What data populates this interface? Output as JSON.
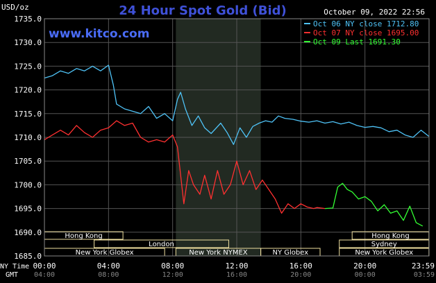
{
  "header": {
    "title": "24 Hour Spot Gold (Bid)",
    "y_unit": "USD/oz",
    "timestamp": "October 09, 2022 22:56",
    "watermark": "www.kitco.com"
  },
  "legend": [
    {
      "text": "Oct 06 NY close 1712.80",
      "color": "#4fc3f7"
    },
    {
      "text": "Oct 07 NY close 1695.00",
      "color": "#ff3030"
    },
    {
      "text": "Oct 09 Last 1691.30",
      "color": "#33ff33"
    }
  ],
  "time_labels": {
    "ny_caption": "NY Time",
    "gmt_caption": "GMT",
    "ny": [
      "00:00",
      "04:00",
      "08:00",
      "12:00",
      "16:00",
      "20:00",
      "23:59"
    ],
    "gmt": [
      "04:00",
      "08:00",
      "12:00",
      "16:00",
      "20:00",
      "00:00",
      "03:59"
    ]
  },
  "sessions": [
    {
      "label": "Hong Kong",
      "start": 0,
      "end": 4.9
    },
    {
      "label": "London",
      "start": 3.1,
      "end": 11.5
    },
    {
      "label": "New York Globex",
      "start": 0,
      "end": 7.5
    },
    {
      "label": "New York NYMEX",
      "start": 8.2,
      "end": 13.5
    },
    {
      "label": "NY Globex",
      "start": 13.5,
      "end": 17.2
    },
    {
      "label": "Hong Kong",
      "start": 19.2,
      "end": 23.99
    },
    {
      "label": "Sydney",
      "start": 18.4,
      "end": 23.99
    },
    {
      "label": "New York Globex",
      "start": 18.4,
      "end": 23.99
    }
  ],
  "colors": {
    "background": "#000000",
    "grid": "#555555",
    "shade": "#222a22",
    "title": "#3f51d8",
    "watermark": "#4a6cf7",
    "axis_text": "#ffffff",
    "session_box": "#f0e0a0",
    "session_text": "#ffffff"
  },
  "chart_data": {
    "type": "line",
    "title": "24 Hour Spot Gold (Bid)",
    "ylabel": "USD/oz",
    "xlabel": "NY Time",
    "ylim": [
      1685,
      1735
    ],
    "xlim": [
      0,
      24
    ],
    "y_ticks": [
      1685,
      1690,
      1695,
      1700,
      1705,
      1710,
      1715,
      1720,
      1725,
      1730,
      1735
    ],
    "grid": true,
    "legend_position": "top-right",
    "shaded_x_range": [
      8.2,
      13.5
    ],
    "series": [
      {
        "name": "Oct 06 NY close 1712.80",
        "color": "#4fc3f7",
        "x": [
          0,
          0.5,
          1,
          1.5,
          2,
          2.5,
          3,
          3.5,
          4,
          4.3,
          4.5,
          5,
          5.5,
          6,
          6.5,
          7,
          7.5,
          8,
          8.3,
          8.5,
          8.8,
          9.2,
          9.6,
          10,
          10.4,
          11,
          11.4,
          11.8,
          12.2,
          12.6,
          13,
          13.4,
          13.8,
          14.2,
          14.6,
          15,
          15.5,
          16,
          16.5,
          17,
          17.5,
          18,
          18.5,
          19,
          19.5,
          20,
          20.5,
          21,
          21.5,
          22,
          22.5,
          23,
          23.5,
          23.99
        ],
        "y": [
          1722.5,
          1723,
          1724,
          1723.5,
          1724.5,
          1724,
          1725,
          1724,
          1725.2,
          1721,
          1717,
          1716,
          1715.5,
          1715,
          1716.5,
          1714,
          1715,
          1713.5,
          1718,
          1719.5,
          1716,
          1712.5,
          1714.5,
          1712,
          1710.8,
          1713,
          1711,
          1708.5,
          1712,
          1710,
          1712.3,
          1713,
          1713.5,
          1713.2,
          1714.5,
          1714,
          1713.8,
          1713.4,
          1713.2,
          1713.5,
          1713,
          1713.3,
          1712.8,
          1713.2,
          1712.5,
          1712.1,
          1712.3,
          1712,
          1711.2,
          1711.5,
          1710.5,
          1710,
          1711.5,
          1710.2
        ]
      },
      {
        "name": "Oct 07 NY close 1695.00",
        "color": "#ff3030",
        "x": [
          0,
          0.5,
          1,
          1.5,
          2,
          2.5,
          3,
          3.5,
          4,
          4.5,
          5,
          5.5,
          6,
          6.5,
          7,
          7.5,
          8,
          8.3,
          8.5,
          8.7,
          9,
          9.3,
          9.7,
          10,
          10.4,
          10.8,
          11.2,
          11.6,
          12,
          12.4,
          12.8,
          13.2,
          13.6,
          14,
          14.4,
          14.8,
          15.2,
          15.6,
          16,
          16.4,
          16.8,
          17,
          17.5
        ],
        "y": [
          1709.5,
          1710.5,
          1711.5,
          1710.5,
          1712.5,
          1711,
          1710,
          1711.5,
          1712,
          1713.5,
          1712.5,
          1713,
          1710,
          1709,
          1709.5,
          1709,
          1710.5,
          1708,
          1702,
          1696,
          1703,
          1700,
          1698,
          1702,
          1697,
          1703,
          1698,
          1700,
          1705,
          1700,
          1703,
          1699,
          1701,
          1699,
          1697,
          1694,
          1696,
          1695,
          1696,
          1695.3,
          1695,
          1695.2,
          1695
        ]
      },
      {
        "name": "Oct 09 Last 1691.30",
        "color": "#33ff33",
        "x": [
          17.5,
          18,
          18.3,
          18.6,
          18.9,
          19.2,
          19.6,
          20,
          20.4,
          20.8,
          21.2,
          21.6,
          22,
          22.4,
          22.8,
          23.2,
          23.6
        ],
        "y": [
          1695,
          1695.1,
          1699.5,
          1700.3,
          1699,
          1698.5,
          1697,
          1697.5,
          1696.5,
          1694.5,
          1695.8,
          1694,
          1694.5,
          1692.5,
          1695.5,
          1692,
          1691.3
        ]
      }
    ]
  }
}
